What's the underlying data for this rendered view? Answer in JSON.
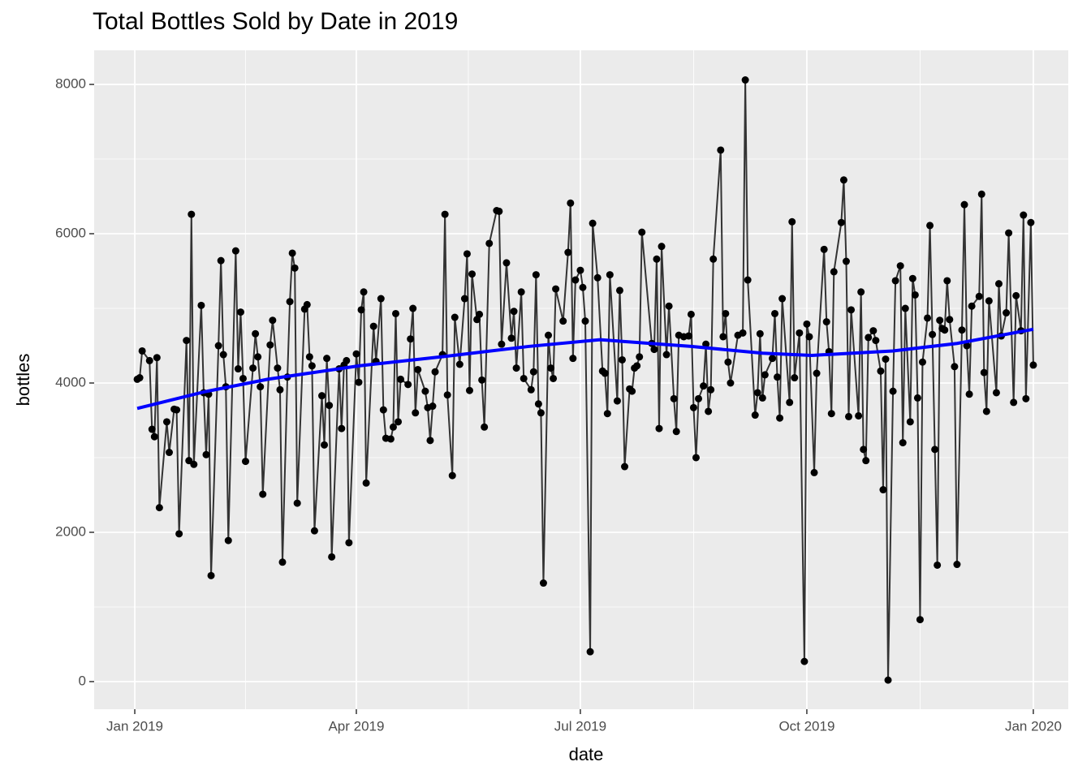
{
  "chart_data": {
    "type": "line",
    "title": "Total Bottles Sold by Date in 2019",
    "x_label": "date",
    "y_label": "bottles",
    "x": [
      1,
      2,
      3,
      6,
      7,
      8,
      9,
      10,
      13,
      14,
      16,
      17,
      18,
      21,
      22,
      23,
      24,
      27,
      28,
      29,
      30,
      31,
      34,
      35,
      36,
      37,
      38,
      41,
      42,
      43,
      44,
      45,
      48,
      49,
      50,
      51,
      52,
      55,
      56,
      58,
      59,
      60,
      62,
      63,
      64,
      65,
      66,
      69,
      70,
      71,
      72,
      73,
      76,
      77,
      78,
      79,
      80,
      83,
      84,
      85,
      86,
      87,
      90,
      91,
      92,
      93,
      94,
      97,
      98,
      100,
      101,
      102,
      104,
      105,
      106,
      107,
      108,
      111,
      112,
      113,
      114,
      115,
      118,
      119,
      120,
      121,
      122,
      125,
      126,
      127,
      129,
      130,
      132,
      134,
      135,
      136,
      137,
      139,
      140,
      141,
      142,
      144,
      147,
      148,
      149,
      151,
      153,
      154,
      155,
      157,
      158,
      161,
      162,
      163,
      164,
      165,
      166,
      168,
      169,
      170,
      171,
      174,
      176,
      177,
      178,
      179,
      181,
      182,
      183,
      185,
      186,
      188,
      190,
      191,
      192,
      193,
      196,
      197,
      198,
      199,
      201,
      202,
      203,
      204,
      205,
      206,
      210,
      211,
      212,
      213,
      214,
      216,
      217,
      219,
      220,
      221,
      223,
      225,
      226,
      227,
      228,
      229,
      231,
      232,
      233,
      234,
      235,
      238,
      239,
      240,
      241,
      242,
      245,
      247,
      248,
      249,
      252,
      253,
      254,
      255,
      256,
      259,
      260,
      261,
      262,
      263,
      266,
      267,
      268,
      270,
      272,
      273,
      274,
      276,
      277,
      280,
      281,
      282,
      283,
      284,
      287,
      288,
      289,
      290,
      291,
      294,
      295,
      296,
      297,
      298,
      300,
      301,
      303,
      304,
      305,
      306,
      308,
      309,
      311,
      312,
      313,
      315,
      316,
      317,
      318,
      319,
      320,
      322,
      323,
      324,
      325,
      326,
      327,
      328,
      329,
      330,
      331,
      333,
      334,
      336,
      337,
      338,
      339,
      340,
      343,
      344,
      345,
      346,
      347,
      350,
      351,
      352,
      354,
      355,
      357,
      358,
      360,
      361,
      362,
      364,
      365
    ],
    "series": [
      {
        "color": "#333333",
        "point_color": "#000000",
        "values": [
          4050,
          4070,
          4430,
          4300,
          3380,
          3280,
          4340,
          2330,
          3480,
          3070,
          3650,
          3640,
          1980,
          4570,
          2960,
          6260,
          2910,
          5040,
          3870,
          3040,
          3850,
          1420,
          4500,
          5640,
          4380,
          3950,
          1890,
          5770,
          4190,
          4950,
          4060,
          2950,
          4200,
          4660,
          4350,
          3950,
          2510,
          4510,
          4840,
          4200,
          3910,
          1600,
          4080,
          5090,
          5740,
          5540,
          2390,
          4990,
          5050,
          4350,
          4230,
          2020,
          3830,
          3170,
          4330,
          3700,
          1670,
          4190,
          3390,
          4240,
          4300,
          1860,
          4390,
          4010,
          4980,
          5220,
          2660,
          4760,
          4290,
          5130,
          3640,
          3260,
          3250,
          3410,
          4930,
          3480,
          4050,
          3980,
          4590,
          5000,
          3600,
          4180,
          3890,
          3670,
          3230,
          3690,
          4150,
          4380,
          6260,
          3840,
          2760,
          4880,
          4250,
          5130,
          5730,
          3900,
          5460,
          4850,
          4920,
          4040,
          3410,
          5870,
          6310,
          6300,
          4520,
          5610,
          4600,
          4960,
          4200,
          5220,
          4060,
          3910,
          4150,
          5450,
          3720,
          3600,
          1320,
          4640,
          4200,
          4060,
          5260,
          4830,
          5750,
          6410,
          4330,
          5380,
          5510,
          5280,
          4830,
          400,
          6140,
          5410,
          4160,
          4130,
          3590,
          5450,
          3760,
          5240,
          4310,
          2880,
          3920,
          3890,
          4200,
          4230,
          4350,
          6020,
          4530,
          4450,
          5660,
          3390,
          5830,
          4380,
          5030,
          3790,
          3350,
          4640,
          4620,
          4630,
          4920,
          3670,
          3000,
          3790,
          3960,
          4520,
          3620,
          3910,
          5660,
          7120,
          4620,
          4930,
          4280,
          4000,
          4640,
          4670,
          8060,
          5380,
          3570,
          3870,
          4660,
          3800,
          4110,
          4330,
          4930,
          4080,
          3530,
          5130,
          3740,
          6160,
          4070,
          4670,
          270,
          4790,
          4620,
          2800,
          4130,
          5790,
          4820,
          4420,
          3590,
          5490,
          6150,
          6720,
          5630,
          3550,
          4980,
          3560,
          5220,
          3110,
          2960,
          4610,
          4700,
          4570,
          4160,
          2570,
          4320,
          20,
          3890,
          5370,
          5570,
          3200,
          5000,
          3480,
          5400,
          5180,
          3800,
          830,
          4280,
          4870,
          6110,
          4650,
          3110,
          1560,
          4840,
          4730,
          4710,
          5370,
          4850,
          4220,
          1570,
          4710,
          6390,
          4500,
          3850,
          5030,
          5160,
          6530,
          4140,
          3620,
          5100,
          3870,
          5330,
          4630,
          4940,
          6010,
          3740,
          5170,
          4700,
          6250,
          3790,
          6150,
          4240
        ]
      }
    ],
    "trend": {
      "color": "#0000ff",
      "x": [
        1,
        28,
        54,
        91,
        127,
        160,
        189,
        226,
        255,
        275,
        308,
        334,
        365
      ],
      "values": [
        3660,
        3880,
        4050,
        4230,
        4360,
        4490,
        4580,
        4490,
        4400,
        4370,
        4430,
        4530,
        4720
      ]
    },
    "xlim": [
      -16.5,
      379.2
    ],
    "ylim": [
      -370,
      8457
    ],
    "xticks": [
      {
        "value": 0,
        "label": "Jan 2019"
      },
      {
        "value": 90,
        "label": "Apr 2019"
      },
      {
        "value": 181,
        "label": "Jul 2019"
      },
      {
        "value": 273,
        "label": "Oct 2019"
      },
      {
        "value": 365,
        "label": "Jan 2020"
      }
    ],
    "yticks": [
      0,
      2000,
      4000,
      6000,
      8000
    ],
    "grid": true
  }
}
